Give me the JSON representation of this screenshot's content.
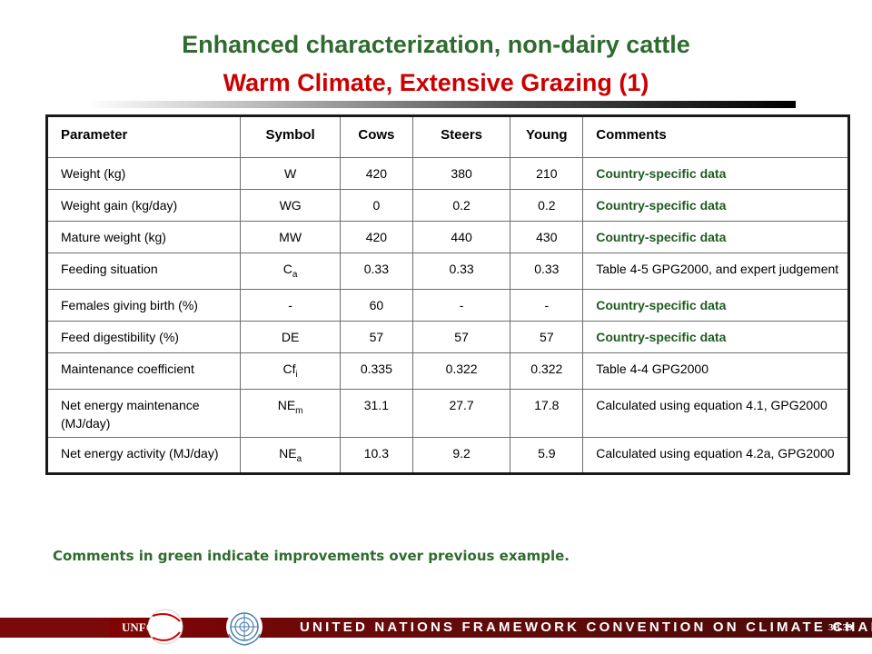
{
  "title": {
    "line1": "Enhanced characterization, non-dairy cattle",
    "line2_main": "Warm Climate, Extensive Grazing",
    "line2_num": "(1)"
  },
  "table": {
    "headers": [
      "Parameter",
      "Symbol",
      "Cows",
      "Steers",
      "Young",
      "Comments"
    ],
    "rows": [
      {
        "parameter": "Weight (kg)",
        "symbol": "W",
        "symbol_sub": "",
        "cows": "420",
        "steers": "380",
        "young": "210",
        "comments": "Country-specific data",
        "comment_highlight": true
      },
      {
        "parameter": "Weight gain (kg/day)",
        "symbol": "WG",
        "symbol_sub": "",
        "cows": "0",
        "steers": "0.2",
        "young": "0.2",
        "comments": "Country-specific data",
        "comment_highlight": true
      },
      {
        "parameter": "Mature weight (kg)",
        "symbol": "MW",
        "symbol_sub": "",
        "cows": "420",
        "steers": "440",
        "young": "430",
        "comments": "Country-specific data",
        "comment_highlight": true
      },
      {
        "parameter": "Feeding situation",
        "symbol": "C",
        "symbol_sub": "a",
        "cows": "0.33",
        "steers": "0.33",
        "young": "0.33",
        "comments": "Table 4-5 GPG2000, and expert judgement",
        "comment_highlight": false
      },
      {
        "parameter": "Females giving birth (%)",
        "symbol": "-",
        "symbol_sub": "",
        "cows": "60",
        "steers": "-",
        "young": "-",
        "comments": "Country-specific data",
        "comment_highlight": true
      },
      {
        "parameter": "Feed digestibility (%)",
        "symbol": "DE",
        "symbol_sub": "",
        "cows": "57",
        "steers": "57",
        "young": "57",
        "comments": "Country-specific data",
        "comment_highlight": true
      },
      {
        "parameter": "Maintenance coefficient",
        "symbol": "Cf",
        "symbol_sub": "i",
        "cows": "0.335",
        "steers": "0.322",
        "young": "0.322",
        "comments": "Table 4-4 GPG2000",
        "comment_highlight": false
      },
      {
        "parameter": "Net energy maintenance (MJ/day)",
        "symbol": "NE",
        "symbol_sub": "m",
        "cows": "31.1",
        "steers": "27.7",
        "young": "17.8",
        "comments": "Calculated using equation 4.1, GPG2000",
        "comment_highlight": false
      },
      {
        "parameter": "Net energy activity (MJ/day)",
        "symbol": "NE",
        "symbol_sub": "a",
        "cows": "10.3",
        "steers": "9.2",
        "young": "5.9",
        "comments": "Calculated using equation 4.2a, GPG2000",
        "comment_highlight": false
      }
    ]
  },
  "note": "Comments in green indicate improvements over previous example.",
  "footer": {
    "banner_text": "UNITED NATIONS FRAMEWORK CONVENTION ON CLIMATE CHANGE",
    "logo_text": "UNFCCC",
    "slide_number": "3B.39"
  },
  "colors": {
    "title_green": "#2f6b2f",
    "title_red": "#cc0000",
    "comment_green": "#1f5c1f",
    "footer_red": "#8b0000"
  }
}
